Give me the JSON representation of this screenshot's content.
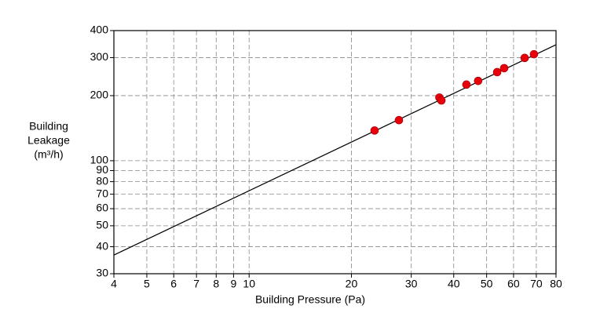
{
  "chart_data": {
    "type": "scatter",
    "log_x": true,
    "log_y": true,
    "grid": true,
    "x_label": "Building Pressure (Pa)",
    "y_label": [
      "Building",
      "Leakage",
      "(m³/h)"
    ],
    "xlim": [
      4,
      80
    ],
    "ylim": [
      30,
      400
    ],
    "xticks": [
      4,
      5,
      6,
      7,
      8,
      9,
      10,
      20,
      30,
      40,
      50,
      60,
      70,
      80
    ],
    "yticks": [
      30,
      40,
      50,
      60,
      70,
      80,
      90,
      100,
      200,
      300,
      400
    ],
    "series": [
      {
        "color": "#e8000b",
        "x": [
          23.4,
          27.6,
          36.3,
          36.8,
          43.6,
          47.2,
          53.7,
          56.3,
          64.7,
          68.9
        ],
        "values": [
          138,
          154,
          196,
          190,
          225,
          234,
          257,
          268,
          299,
          311
        ]
      }
    ],
    "fit_line": {
      "color": "#000000",
      "x": [
        4,
        80
      ],
      "values": [
        36.6,
        344
      ]
    }
  }
}
